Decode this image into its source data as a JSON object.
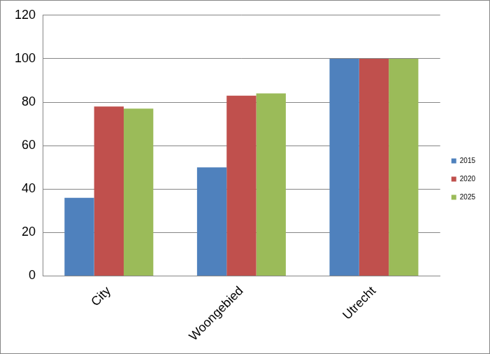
{
  "chart_data": {
    "type": "bar",
    "categories": [
      "City",
      "Woongebied",
      "Utrecht"
    ],
    "series": [
      {
        "name": "2015",
        "color": "#4f81bd",
        "values": [
          36,
          50,
          100
        ]
      },
      {
        "name": "2020",
        "color": "#c0504d",
        "values": [
          78,
          83,
          100
        ]
      },
      {
        "name": "2025",
        "color": "#9bbb59",
        "values": [
          77,
          84,
          100
        ]
      }
    ],
    "ylim": [
      0,
      120
    ],
    "yticks": [
      0,
      20,
      40,
      60,
      80,
      100,
      120
    ],
    "grid": true,
    "legend": "right"
  }
}
